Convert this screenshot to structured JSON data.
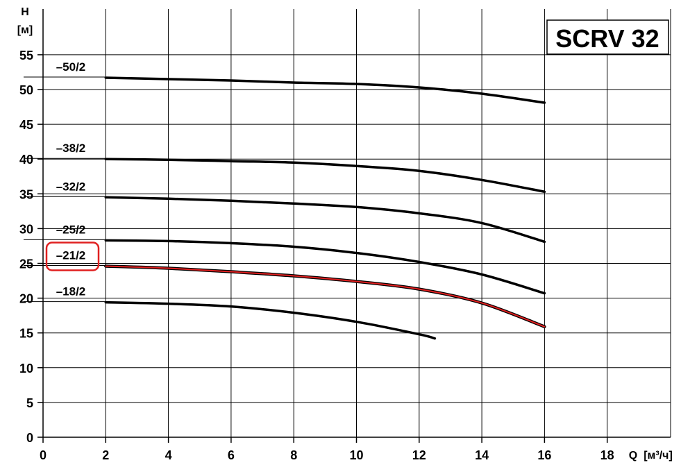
{
  "chart_data": {
    "type": "line",
    "title": "SCRV 32",
    "ylabel": "H",
    "yunit": "[м]",
    "xlabel": "Q",
    "xunit": "[м³/ч]",
    "xlim": [
      0,
      20
    ],
    "ylim": [
      0,
      58
    ],
    "x_ticks": [
      "0",
      "2",
      "4",
      "6",
      "8",
      "10",
      "12",
      "14",
      "16",
      "18"
    ],
    "y_ticks": [
      "0",
      "5",
      "10",
      "15",
      "20",
      "25",
      "30",
      "35",
      "40",
      "45",
      "50",
      "55"
    ],
    "grid": true,
    "highlight_color": "#e02020",
    "series": [
      {
        "name": "–50/2",
        "x": [
          2,
          4,
          6,
          8,
          10,
          12,
          14,
          16
        ],
        "y": [
          51.7,
          51.5,
          51.3,
          51.0,
          50.8,
          50.3,
          49.4,
          48.1
        ],
        "highlighted": false
      },
      {
        "name": "–38/2",
        "x": [
          2,
          4,
          6,
          8,
          10,
          12,
          14,
          16
        ],
        "y": [
          40.0,
          39.9,
          39.7,
          39.5,
          39.0,
          38.3,
          37.0,
          35.3
        ],
        "highlighted": false
      },
      {
        "name": "–32/2",
        "x": [
          2,
          4,
          6,
          8,
          10,
          12,
          14,
          16
        ],
        "y": [
          34.5,
          34.3,
          34.0,
          33.6,
          33.1,
          32.2,
          30.8,
          28.1
        ],
        "highlighted": false
      },
      {
        "name": "–25/2",
        "x": [
          2,
          4,
          6,
          8,
          10,
          12,
          14,
          16
        ],
        "y": [
          28.3,
          28.2,
          27.9,
          27.4,
          26.5,
          25.2,
          23.4,
          20.7
        ],
        "highlighted": false
      },
      {
        "name": "–21/2",
        "x": [
          2,
          4,
          6,
          8,
          10,
          12,
          14,
          16
        ],
        "y": [
          24.6,
          24.3,
          23.8,
          23.2,
          22.4,
          21.3,
          19.3,
          15.9
        ],
        "highlighted": true
      },
      {
        "name": "–18/2",
        "x": [
          2,
          4,
          6,
          8,
          10,
          12,
          12.5
        ],
        "y": [
          19.4,
          19.2,
          18.8,
          17.9,
          16.6,
          14.8,
          14.2
        ],
        "highlighted": false
      }
    ]
  }
}
